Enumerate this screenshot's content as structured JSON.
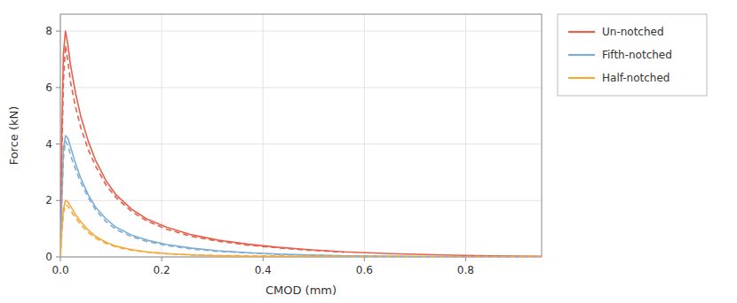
{
  "chart_data": {
    "type": "line",
    "title": "",
    "xlabel": "CMOD  (mm)",
    "ylabel": "Force (kN)",
    "xlim": [
      0,
      0.95
    ],
    "ylim": [
      0,
      8.6
    ],
    "xticks": [
      {
        "value": 0.0,
        "label": "0.0"
      },
      0.2,
      0.4,
      0.6,
      0.8
    ],
    "yticks": [
      0,
      2,
      4,
      6,
      8
    ],
    "grid": true,
    "legend": "right",
    "series": [
      {
        "name": "Un-notched",
        "color": "#e8604c",
        "line_style": "solid",
        "x": [
          0.0,
          0.003,
          0.006,
          0.01,
          0.015,
          0.02,
          0.03,
          0.04,
          0.055,
          0.07,
          0.09,
          0.11,
          0.14,
          0.17,
          0.21,
          0.26,
          0.31,
          0.37,
          0.43,
          0.49,
          0.56,
          0.65,
          0.75,
          0.85,
          0.95
        ],
        "values": [
          0.0,
          4.5,
          7.2,
          8.0,
          7.5,
          6.8,
          5.8,
          5.0,
          4.1,
          3.4,
          2.7,
          2.2,
          1.7,
          1.35,
          1.05,
          0.78,
          0.6,
          0.45,
          0.34,
          0.26,
          0.18,
          0.12,
          0.07,
          0.04,
          0.02
        ]
      },
      {
        "name": "Fifth-notched",
        "color": "#7eaed4",
        "line_style": "solid",
        "x": [
          0.0,
          0.003,
          0.006,
          0.01,
          0.015,
          0.02,
          0.03,
          0.04,
          0.055,
          0.07,
          0.09,
          0.11,
          0.14,
          0.17,
          0.21,
          0.26,
          0.31,
          0.37,
          0.43,
          0.49,
          0.56,
          0.65,
          0.75,
          0.85,
          0.95
        ],
        "values": [
          0.0,
          2.2,
          3.8,
          4.3,
          4.2,
          3.9,
          3.3,
          2.8,
          2.2,
          1.75,
          1.35,
          1.05,
          0.78,
          0.6,
          0.44,
          0.31,
          0.22,
          0.15,
          0.1,
          0.07,
          0.04,
          0.02,
          0.01,
          0.005,
          0.002
        ]
      },
      {
        "name": "Half-notched",
        "color": "#f5a93b",
        "line_style": "solid",
        "x": [
          0.0,
          0.003,
          0.006,
          0.01,
          0.015,
          0.02,
          0.03,
          0.04,
          0.055,
          0.07,
          0.09,
          0.11,
          0.14,
          0.17,
          0.21,
          0.26,
          0.31,
          0.37,
          0.43,
          0.49,
          0.56,
          0.65,
          0.75,
          0.85,
          0.95
        ],
        "values": [
          0.0,
          1.0,
          1.7,
          2.0,
          1.95,
          1.8,
          1.5,
          1.25,
          0.95,
          0.72,
          0.52,
          0.38,
          0.26,
          0.18,
          0.12,
          0.07,
          0.04,
          0.025,
          0.015,
          0.009,
          0.005,
          0.003,
          0.002,
          0.001,
          0.001
        ]
      },
      {
        "name": "Un-notched",
        "color": "#e8604c",
        "line_style": "dashed",
        "x": [
          0.0,
          0.003,
          0.006,
          0.01,
          0.015,
          0.02,
          0.03,
          0.04,
          0.055,
          0.07,
          0.09,
          0.11,
          0.14,
          0.17,
          0.21,
          0.26,
          0.31,
          0.37,
          0.43,
          0.49,
          0.56
        ],
        "values": [
          0.0,
          3.8,
          6.2,
          7.5,
          6.9,
          6.2,
          5.3,
          4.6,
          3.8,
          3.2,
          2.55,
          2.1,
          1.62,
          1.28,
          0.98,
          0.72,
          0.56,
          0.42,
          0.32,
          0.24,
          0.17
        ]
      },
      {
        "name": "Fifth-notched",
        "color": "#7eaed4",
        "line_style": "dashed",
        "x": [
          0.0,
          0.003,
          0.006,
          0.01,
          0.015,
          0.02,
          0.03,
          0.04,
          0.055,
          0.07,
          0.09,
          0.11,
          0.14,
          0.17,
          0.21,
          0.26,
          0.31,
          0.37,
          0.43,
          0.49,
          0.56,
          0.65,
          0.75,
          0.85,
          0.95
        ],
        "values": [
          0.0,
          2.0,
          3.5,
          4.1,
          3.95,
          3.6,
          3.1,
          2.65,
          2.1,
          1.65,
          1.25,
          0.97,
          0.72,
          0.55,
          0.4,
          0.28,
          0.2,
          0.14,
          0.09,
          0.06,
          0.04,
          0.02,
          0.01,
          0.005,
          0.002
        ]
      },
      {
        "name": "Half-notched",
        "color": "#f5a93b",
        "line_style": "dashed",
        "x": [
          0.0,
          0.003,
          0.006,
          0.01,
          0.015,
          0.02,
          0.03,
          0.04,
          0.055,
          0.07,
          0.09,
          0.11,
          0.14,
          0.17,
          0.21,
          0.26,
          0.31,
          0.37,
          0.43,
          0.49,
          0.56,
          0.65,
          0.75,
          0.85,
          0.95
        ],
        "values": [
          0.0,
          0.9,
          1.55,
          1.85,
          1.8,
          1.65,
          1.38,
          1.15,
          0.87,
          0.66,
          0.48,
          0.35,
          0.24,
          0.17,
          0.11,
          0.07,
          0.05,
          0.04,
          0.035,
          0.03,
          0.025,
          0.02,
          0.015,
          0.012,
          0.01
        ]
      }
    ]
  }
}
